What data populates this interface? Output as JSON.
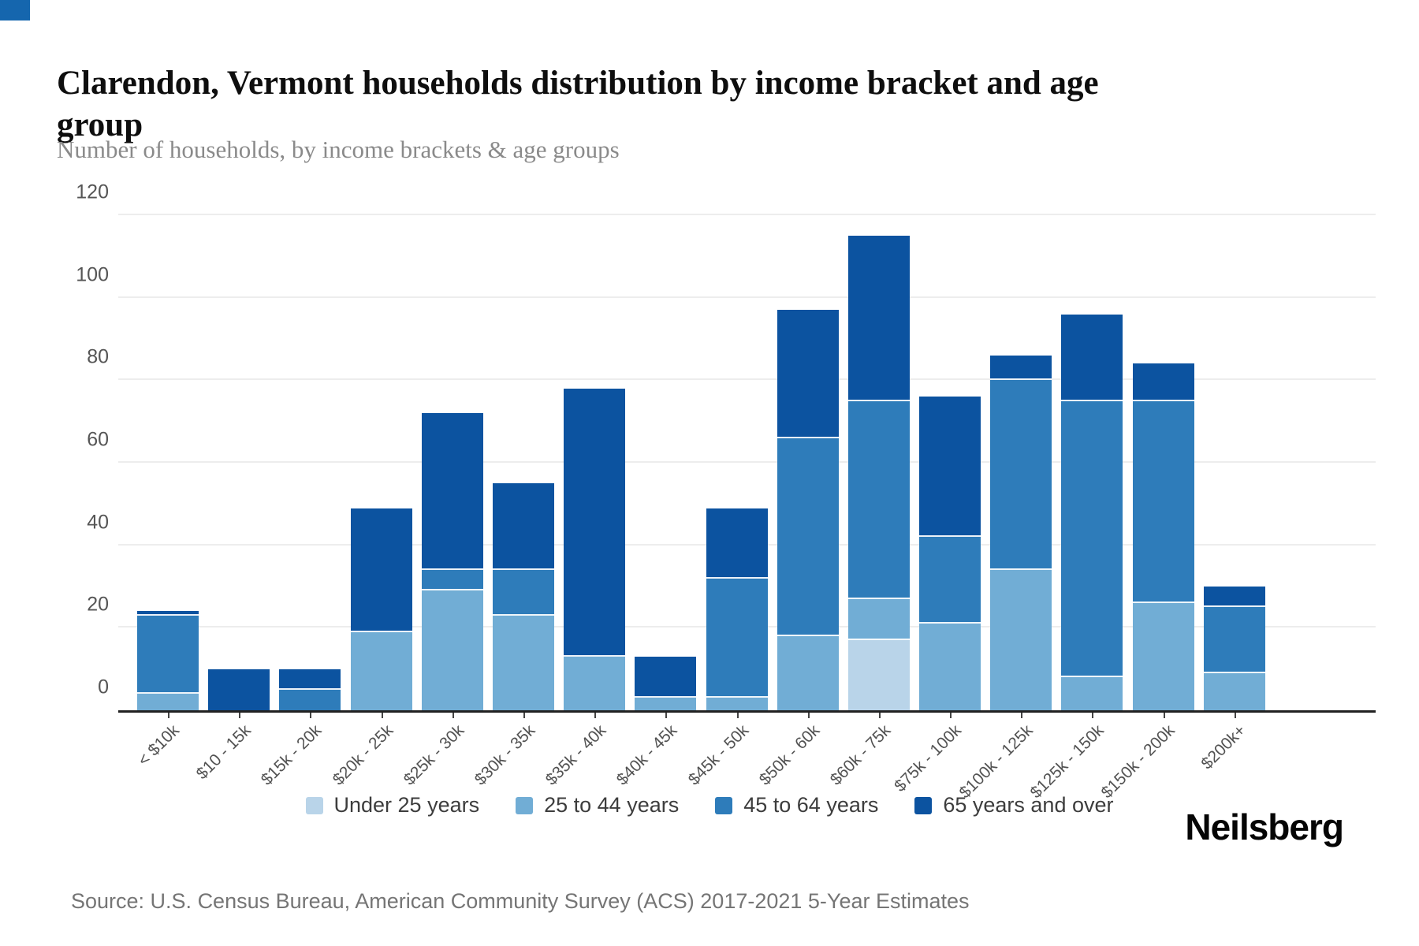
{
  "brand": {
    "logo_text": "Neilsberg",
    "corner_mark_color": "#1566ae"
  },
  "source": {
    "text": "Source: U.S. Census Bureau, American Community Survey (ACS) 2017-2021 5-Year Estimates"
  },
  "chart_data": {
    "type": "bar",
    "stacked": true,
    "title": "Clarendon, Vermont households distribution by income bracket and age group",
    "subtitle": "Number of households, by income brackets & age groups",
    "categories": [
      "< $10k",
      "$10 - 15k",
      "$15k - 20k",
      "$20k - 25k",
      "$25k - 30k",
      "$30k - 35k",
      "$35k - 40k",
      "$40k - 45k",
      "$45k - 50k",
      "$50k - 60k",
      "$60k - 75k",
      "$75k - 100k",
      "$100k - 125k",
      "$125k - 150k",
      "$150k - 200k",
      "$200k+"
    ],
    "series": [
      {
        "name": "Under 25 years",
        "color": "#b9d4e9",
        "values": [
          0,
          0,
          0,
          0,
          0,
          0,
          0,
          0,
          0,
          0,
          17,
          0,
          0,
          0,
          0,
          0
        ]
      },
      {
        "name": "25 to 44 years",
        "color": "#71add5",
        "values": [
          4,
          0,
          0,
          19,
          29,
          23,
          13,
          3,
          3,
          18,
          10,
          21,
          34,
          8,
          26,
          9
        ]
      },
      {
        "name": "45 to 64 years",
        "color": "#2e7cba",
        "values": [
          19,
          0,
          5,
          0,
          5,
          11,
          0,
          0,
          29,
          48,
          48,
          21,
          46,
          67,
          49,
          16
        ]
      },
      {
        "name": "65 years and over",
        "color": "#0c53a0",
        "values": [
          1,
          10,
          5,
          30,
          38,
          21,
          65,
          10,
          17,
          31,
          40,
          34,
          6,
          21,
          9,
          5
        ]
      }
    ],
    "totals": [
      24,
      10,
      10,
      49,
      72,
      55,
      78,
      13,
      49,
      97,
      115,
      76,
      86,
      96,
      84,
      30
    ],
    "ylim": [
      0,
      120
    ],
    "yticks": [
      0,
      20,
      40,
      60,
      80,
      100,
      120
    ],
    "grid": "horizontal",
    "legend_position": "bottom-center",
    "ylabel": "",
    "xlabel": ""
  }
}
